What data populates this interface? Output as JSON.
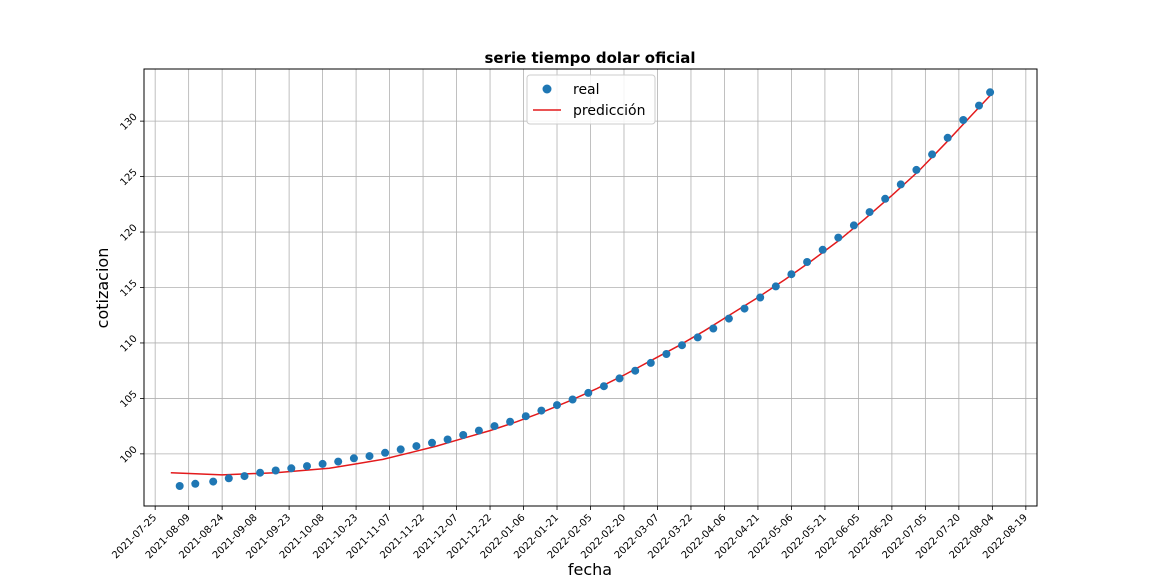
{
  "chart_data": {
    "type": "scatter",
    "title": "serie tiempo dolar oficial",
    "xlabel": "fecha",
    "ylabel": "cotizacion",
    "x_type": "date",
    "xlim": [
      "2021-07-20",
      "2022-08-24"
    ],
    "ylim": [
      95.3,
      134.7
    ],
    "x_ticks": [
      "2021-07-25",
      "2021-08-09",
      "2021-08-24",
      "2021-09-08",
      "2021-09-23",
      "2021-10-08",
      "2021-10-23",
      "2021-11-07",
      "2021-11-22",
      "2021-12-07",
      "2021-12-22",
      "2022-01-06",
      "2022-01-21",
      "2022-02-05",
      "2022-02-20",
      "2022-03-07",
      "2022-03-22",
      "2022-04-06",
      "2022-04-21",
      "2022-05-06",
      "2022-05-21",
      "2022-06-05",
      "2022-06-20",
      "2022-07-05",
      "2022-07-20",
      "2022-08-04",
      "2022-08-19"
    ],
    "y_ticks": [
      100,
      105,
      110,
      115,
      120,
      125,
      130
    ],
    "grid": true,
    "legend_position": "top-center",
    "series": [
      {
        "name": "real",
        "kind": "scatter",
        "color": "#1f77b4",
        "points": [
          [
            "2021-08-05",
            97.1
          ],
          [
            "2021-08-12",
            97.3
          ],
          [
            "2021-08-20",
            97.5
          ],
          [
            "2021-08-27",
            97.8
          ],
          [
            "2021-09-03",
            98.0
          ],
          [
            "2021-09-10",
            98.3
          ],
          [
            "2021-09-17",
            98.5
          ],
          [
            "2021-09-24",
            98.7
          ],
          [
            "2021-10-01",
            98.9
          ],
          [
            "2021-10-08",
            99.1
          ],
          [
            "2021-10-15",
            99.3
          ],
          [
            "2021-10-22",
            99.6
          ],
          [
            "2021-10-29",
            99.8
          ],
          [
            "2021-11-05",
            100.1
          ],
          [
            "2021-11-12",
            100.4
          ],
          [
            "2021-11-19",
            100.7
          ],
          [
            "2021-11-26",
            101.0
          ],
          [
            "2021-12-03",
            101.3
          ],
          [
            "2021-12-10",
            101.7
          ],
          [
            "2021-12-17",
            102.1
          ],
          [
            "2021-12-24",
            102.5
          ],
          [
            "2021-12-31",
            102.9
          ],
          [
            "2022-01-07",
            103.4
          ],
          [
            "2022-01-14",
            103.9
          ],
          [
            "2022-01-21",
            104.4
          ],
          [
            "2022-01-28",
            104.9
          ],
          [
            "2022-02-04",
            105.5
          ],
          [
            "2022-02-11",
            106.1
          ],
          [
            "2022-02-18",
            106.8
          ],
          [
            "2022-02-25",
            107.5
          ],
          [
            "2022-03-04",
            108.2
          ],
          [
            "2022-03-11",
            109.0
          ],
          [
            "2022-03-18",
            109.8
          ],
          [
            "2022-03-25",
            110.5
          ],
          [
            "2022-04-01",
            111.3
          ],
          [
            "2022-04-08",
            112.2
          ],
          [
            "2022-04-15",
            113.1
          ],
          [
            "2022-04-22",
            114.1
          ],
          [
            "2022-04-29",
            115.1
          ],
          [
            "2022-05-06",
            116.2
          ],
          [
            "2022-05-13",
            117.3
          ],
          [
            "2022-05-20",
            118.4
          ],
          [
            "2022-05-27",
            119.5
          ],
          [
            "2022-06-03",
            120.6
          ],
          [
            "2022-06-10",
            121.8
          ],
          [
            "2022-06-17",
            123.0
          ],
          [
            "2022-06-24",
            124.3
          ],
          [
            "2022-07-01",
            125.6
          ],
          [
            "2022-07-08",
            127.0
          ],
          [
            "2022-07-15",
            128.5
          ],
          [
            "2022-07-22",
            130.1
          ],
          [
            "2022-07-29",
            131.4
          ],
          [
            "2022-08-03",
            132.6
          ]
        ]
      },
      {
        "name": "predicción",
        "kind": "line",
        "color": "#e31a1c",
        "points": [
          [
            "2021-08-01",
            98.3
          ],
          [
            "2021-08-12",
            98.2
          ],
          [
            "2021-08-24",
            98.1
          ],
          [
            "2021-09-05",
            98.2
          ],
          [
            "2021-09-17",
            98.3
          ],
          [
            "2021-09-29",
            98.5
          ],
          [
            "2021-10-11",
            98.7
          ],
          [
            "2021-10-23",
            99.1
          ],
          [
            "2021-11-04",
            99.5
          ],
          [
            "2021-11-16",
            100.1
          ],
          [
            "2021-11-28",
            100.7
          ],
          [
            "2021-12-10",
            101.4
          ],
          [
            "2021-12-22",
            102.1
          ],
          [
            "2022-01-03",
            102.9
          ],
          [
            "2022-01-15",
            103.8
          ],
          [
            "2022-01-27",
            104.8
          ],
          [
            "2022-02-08",
            105.9
          ],
          [
            "2022-02-20",
            107.1
          ],
          [
            "2022-03-04",
            108.4
          ],
          [
            "2022-03-16",
            109.7
          ],
          [
            "2022-03-28",
            111.1
          ],
          [
            "2022-04-09",
            112.6
          ],
          [
            "2022-04-21",
            114.1
          ],
          [
            "2022-05-03",
            115.7
          ],
          [
            "2022-05-15",
            117.4
          ],
          [
            "2022-05-27",
            119.2
          ],
          [
            "2022-06-08",
            121.2
          ],
          [
            "2022-06-20",
            123.3
          ],
          [
            "2022-07-02",
            125.5
          ],
          [
            "2022-07-14",
            128.0
          ],
          [
            "2022-07-26",
            130.6
          ],
          [
            "2022-08-03",
            132.3
          ]
        ]
      }
    ]
  }
}
